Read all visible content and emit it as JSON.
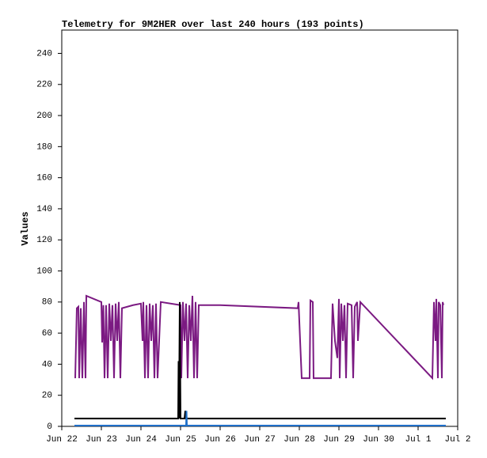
{
  "chart_data": {
    "type": "line",
    "title": "Telemetry for 9M2HER over last 240 hours (193 points)",
    "y_label": "Values",
    "xlim": [
      0,
      10
    ],
    "xticks": [
      {
        "value": 0,
        "label": "Jun 22"
      },
      {
        "value": 1,
        "label": "Jun 23"
      },
      {
        "value": 2,
        "label": "Jun 24"
      },
      {
        "value": 3,
        "label": "Jun 25"
      },
      {
        "value": 4,
        "label": "Jun 26"
      },
      {
        "value": 5,
        "label": "Jun 27"
      },
      {
        "value": 6,
        "label": "Jun 28"
      },
      {
        "value": 7,
        "label": "Jun 29"
      },
      {
        "value": 8,
        "label": "Jun 30"
      },
      {
        "value": 9,
        "label": "Jul 1"
      },
      {
        "value": 10,
        "label": "Jul 2"
      }
    ],
    "ylim": [
      0,
      255
    ],
    "yticks": [
      0,
      20,
      40,
      60,
      80,
      100,
      120,
      140,
      160,
      180,
      200,
      220,
      240
    ],
    "series": [
      {
        "color": "#7b1a82",
        "x": [
          0.34,
          0.38,
          0.42,
          0.44,
          0.48,
          0.52,
          0.56,
          0.6,
          0.62,
          1.0,
          1.02,
          1.05,
          1.08,
          1.12,
          1.16,
          1.2,
          1.24,
          1.28,
          1.32,
          1.36,
          1.4,
          1.44,
          1.48,
          1.52,
          1.8,
          2.0,
          2.04,
          2.06,
          2.1,
          2.14,
          2.18,
          2.22,
          2.26,
          2.3,
          2.34,
          2.38,
          2.42,
          2.5,
          3.0,
          3.02,
          3.06,
          3.1,
          3.14,
          3.18,
          3.22,
          3.26,
          3.3,
          3.34,
          3.38,
          3.42,
          3.46,
          3.5,
          4.0,
          5.96,
          5.98,
          6.02,
          6.06,
          6.26,
          6.28,
          6.34,
          6.36,
          6.8,
          6.84,
          6.9,
          6.96,
          7.0,
          7.02,
          7.06,
          7.1,
          7.14,
          7.18,
          7.22,
          7.32,
          7.36,
          7.4,
          7.46,
          7.48,
          7.54,
          9.36,
          9.4,
          9.44,
          9.46,
          9.5,
          9.52,
          9.56,
          9.6,
          9.62,
          9.64
        ],
        "values": [
          31,
          76,
          77,
          31,
          76,
          31,
          80,
          31,
          84,
          80,
          54,
          78,
          31,
          78,
          31,
          79,
          55,
          78,
          31,
          79,
          55,
          80,
          31,
          76,
          78,
          79,
          55,
          80,
          31,
          78,
          31,
          79,
          55,
          78,
          31,
          79,
          31,
          80,
          78,
          31,
          80,
          55,
          79,
          31,
          78,
          55,
          84,
          31,
          80,
          31,
          78,
          78,
          78,
          76,
          80,
          55,
          31,
          31,
          81,
          80,
          31,
          31,
          79,
          55,
          44,
          82,
          31,
          79,
          55,
          78,
          31,
          79,
          78,
          31,
          77,
          80,
          55,
          80,
          31,
          80,
          55,
          82,
          31,
          80,
          78,
          31,
          80,
          78
        ]
      },
      {
        "color": "#000000",
        "x": [
          0.32,
          2.94,
          2.95,
          2.96,
          2.98,
          3.0,
          3.1,
          3.12,
          3.14,
          9.7
        ],
        "values": [
          5,
          5,
          42,
          5,
          80,
          5,
          5,
          10,
          5,
          5
        ]
      },
      {
        "color": "#1f6fc8",
        "x": [
          0.32,
          3.14,
          3.15,
          3.16,
          9.7
        ],
        "values": [
          0.5,
          0.5,
          10,
          0.5,
          0.5
        ]
      }
    ]
  }
}
